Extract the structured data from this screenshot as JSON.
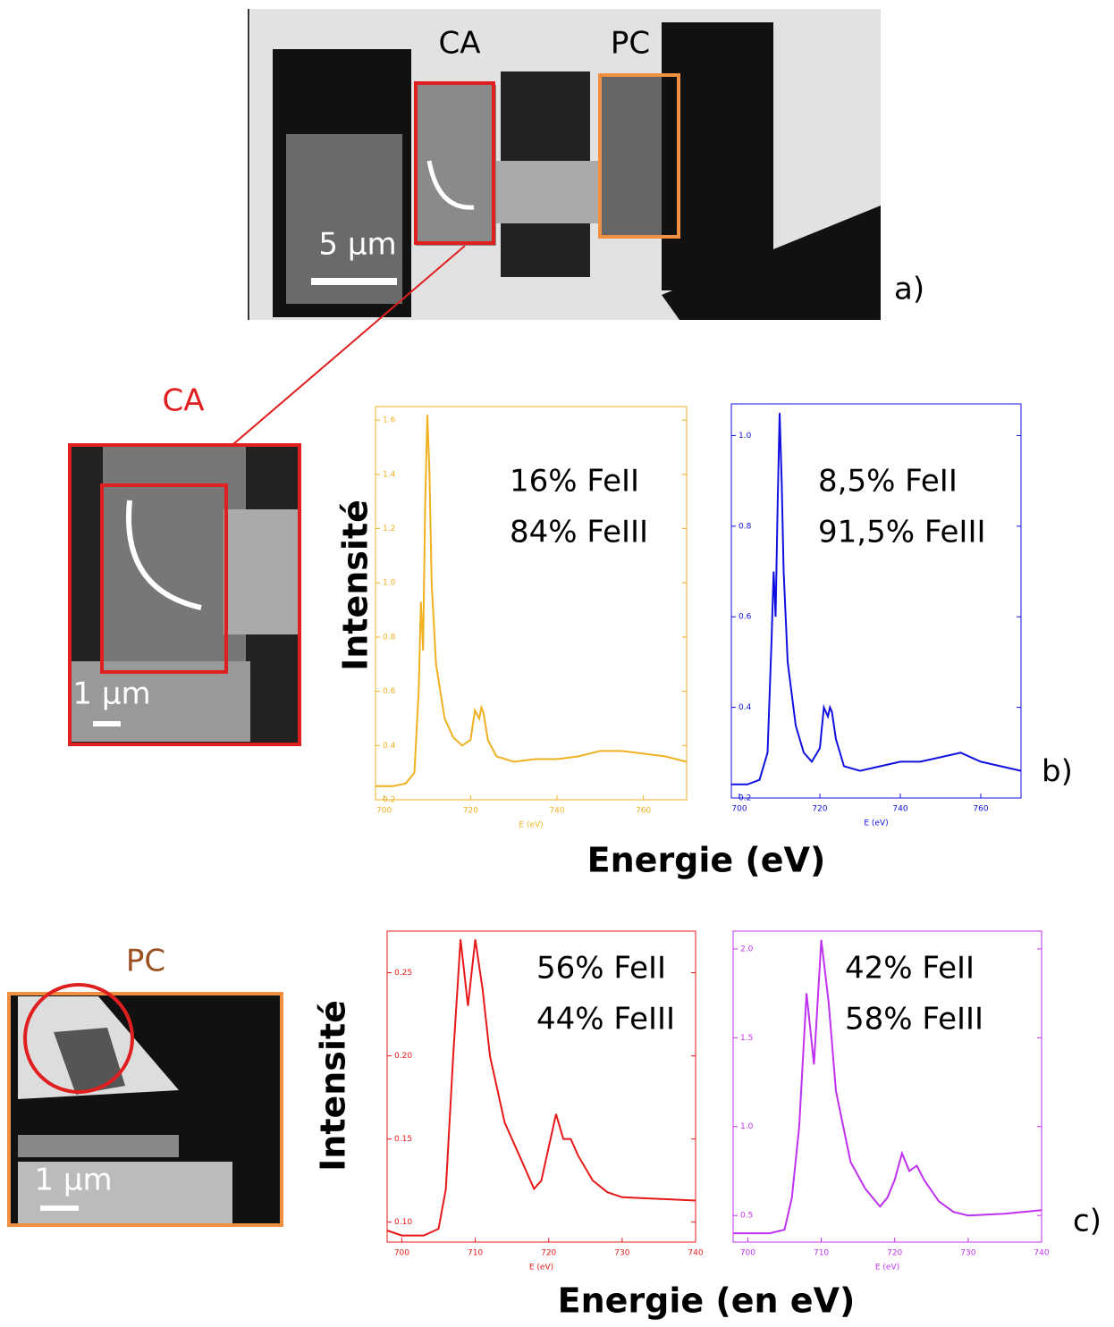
{
  "figure": {
    "top_labels": [
      "CA",
      "PC"
    ],
    "scale_top": "5 µm",
    "panel_a": "a)",
    "panel_b": "b)",
    "panel_c": "c)",
    "ca_label": "CA",
    "ca_scale": "1 µm",
    "pc_label": "PC",
    "pc_scale": "1 µm",
    "ylabel_b": "Intensité",
    "xlabel_b": "Energie (eV)",
    "ylabel_c": "Intensité",
    "xlabel_c": "Energie (en eV)"
  },
  "chart_data": [
    {
      "type": "line",
      "xlabel": "E (eV)",
      "color": "#f0b020",
      "annotations": [
        "16% FeII",
        "84% FeIII"
      ],
      "x": [
        698,
        702,
        705,
        707,
        708,
        708.5,
        709,
        709.5,
        710,
        710.5,
        711,
        712,
        714,
        716,
        718,
        720,
        721,
        722,
        722.5,
        723,
        724,
        726,
        730,
        735,
        740,
        745,
        750,
        755,
        760,
        765,
        770
      ],
      "values": [
        0.25,
        0.25,
        0.26,
        0.3,
        0.6,
        0.93,
        0.75,
        1.3,
        1.62,
        1.4,
        1.0,
        0.7,
        0.5,
        0.43,
        0.4,
        0.42,
        0.53,
        0.5,
        0.54,
        0.52,
        0.42,
        0.36,
        0.34,
        0.35,
        0.35,
        0.36,
        0.38,
        0.38,
        0.37,
        0.36,
        0.34
      ],
      "xlim": [
        698,
        770
      ],
      "ylim": [
        0.2,
        1.65
      ],
      "xticks": [
        700,
        720,
        740,
        760
      ],
      "yticks": [
        0.2,
        0.4,
        0.6,
        0.8,
        {
          "value": 1,
          "label": "1.0"
        },
        1.2,
        1.4,
        1.6
      ]
    },
    {
      "type": "line",
      "xlabel": "E (eV)",
      "color": "#1010e0",
      "annotations": [
        "8,5% FeII",
        "91,5% FeIII"
      ],
      "x": [
        698,
        702,
        705,
        707,
        708,
        708.5,
        709,
        709.5,
        710,
        710.5,
        711,
        712,
        714,
        716,
        718,
        720,
        721,
        722,
        722.5,
        723,
        724,
        726,
        730,
        735,
        740,
        745,
        750,
        755,
        760,
        765,
        770
      ],
      "values": [
        0.23,
        0.23,
        0.24,
        0.3,
        0.55,
        0.7,
        0.6,
        0.85,
        1.05,
        0.9,
        0.7,
        0.5,
        0.36,
        0.3,
        0.28,
        0.31,
        0.4,
        0.38,
        0.4,
        0.39,
        0.33,
        0.27,
        0.26,
        0.27,
        0.28,
        0.28,
        0.29,
        0.3,
        0.28,
        0.27,
        0.26
      ],
      "xlim": [
        698,
        770
      ],
      "ylim": [
        0.2,
        1.07
      ],
      "xticks": [
        700,
        720,
        740,
        760
      ],
      "yticks": [
        0.2,
        0.4,
        0.6,
        0.8,
        {
          "value": 1,
          "label": "1.0"
        }
      ]
    },
    {
      "type": "line",
      "xlabel": "E (eV)",
      "color": "#e81818",
      "annotations": [
        "56% FeII",
        "44% FeIII"
      ],
      "x": [
        698,
        700,
        703,
        705,
        706,
        707,
        708,
        708.5,
        709,
        709.5,
        710,
        711,
        712,
        714,
        716,
        718,
        719,
        720,
        721,
        722,
        723,
        724,
        726,
        728,
        730,
        735,
        740
      ],
      "values": [
        0.095,
        0.092,
        0.092,
        0.096,
        0.12,
        0.2,
        0.27,
        0.25,
        0.23,
        0.25,
        0.27,
        0.24,
        0.2,
        0.16,
        0.14,
        0.12,
        0.125,
        0.145,
        0.165,
        0.15,
        0.15,
        0.14,
        0.125,
        0.118,
        0.115,
        0.114,
        0.113
      ],
      "xlim": [
        698,
        740
      ],
      "ylim": [
        0.088,
        0.275
      ],
      "xticks": [
        700,
        710,
        720,
        730,
        740
      ],
      "yticks": [
        {
          "value": 0.1,
          "label": "0.10"
        },
        0.15,
        {
          "value": 0.2,
          "label": "0.20"
        },
        0.25
      ]
    },
    {
      "type": "line",
      "xlabel": "E (eV)",
      "color": "#c030f0",
      "annotations": [
        "42% FeII",
        "58% FeIII"
      ],
      "x": [
        698,
        700,
        703,
        705,
        706,
        707,
        708,
        708.5,
        709,
        709.5,
        710,
        711,
        712,
        714,
        716,
        718,
        719,
        720,
        721,
        722,
        723,
        724,
        726,
        728,
        730,
        735,
        740
      ],
      "values": [
        0.4,
        0.4,
        0.4,
        0.42,
        0.6,
        1.0,
        1.75,
        1.55,
        1.35,
        1.7,
        2.05,
        1.7,
        1.2,
        0.8,
        0.65,
        0.55,
        0.6,
        0.7,
        0.85,
        0.75,
        0.78,
        0.7,
        0.58,
        0.52,
        0.5,
        0.51,
        0.53
      ],
      "xlim": [
        698,
        740
      ],
      "ylim": [
        0.35,
        2.1
      ],
      "xticks": [
        700,
        710,
        720,
        730,
        740
      ],
      "yticks": [
        0.5,
        {
          "value": 1,
          "label": "1.0"
        },
        1.5,
        {
          "value": 2,
          "label": "2.0"
        }
      ]
    }
  ]
}
